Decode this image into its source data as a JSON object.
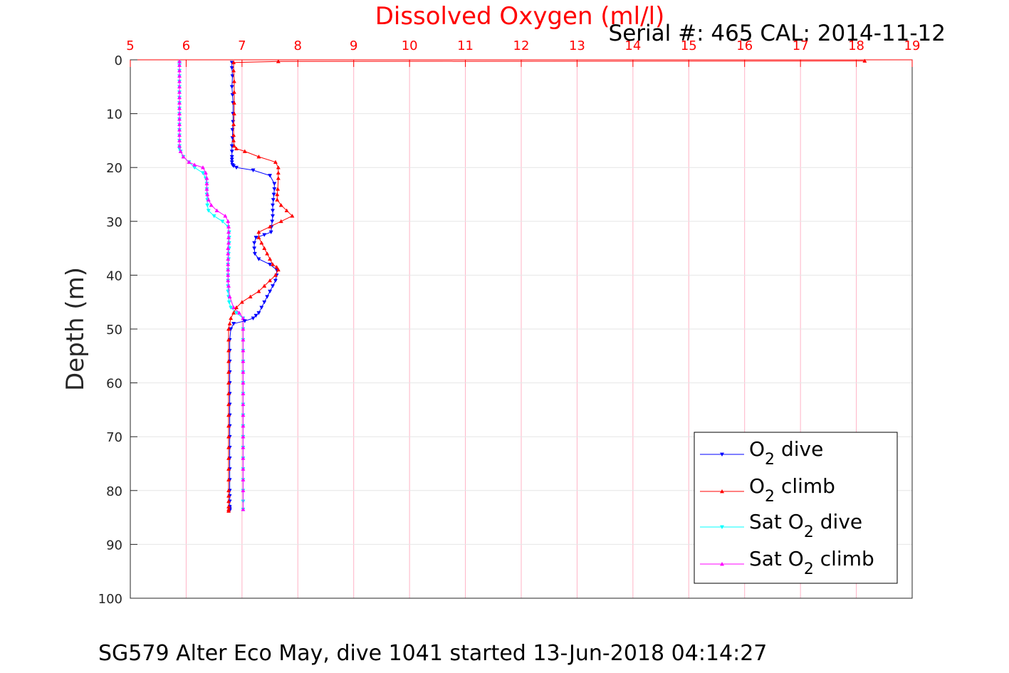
{
  "chart_data": {
    "type": "line",
    "title": "Dissolved Oxygen (ml/l)",
    "subtitle": "Serial #: 465  CAL: 2014-11-12",
    "caption": "SG579 Alter Eco May, dive 1041 started 13-Jun-2018 04:14:27",
    "xlabel": "",
    "ylabel": "Depth (m)",
    "xlim": [
      5,
      19
    ],
    "ylim": [
      0,
      100
    ],
    "y_reversed": true,
    "x_axis_position": "top",
    "grid": true,
    "x_ticks": [
      "5",
      "6",
      "7",
      "8",
      "9",
      "10",
      "11",
      "12",
      "13",
      "14",
      "15",
      "16",
      "17",
      "18",
      "19"
    ],
    "y_ticks": [
      "0",
      "10",
      "20",
      "30",
      "40",
      "50",
      "60",
      "70",
      "80",
      "90",
      "100"
    ],
    "legend": {
      "position": "lower-right",
      "entries": [
        {
          "pre": "O",
          "sub": "2",
          "post": " dive"
        },
        {
          "pre": "O",
          "sub": "2",
          "post": " climb"
        },
        {
          "pre": "Sat O",
          "sub": "2",
          "post": " dive"
        },
        {
          "pre": "Sat O",
          "sub": "2",
          "post": " climb"
        }
      ]
    },
    "series": [
      {
        "color": "#0000ff",
        "marker": "triangle-down",
        "x": [
          6.82,
          6.82,
          6.83,
          6.82,
          6.83,
          6.84,
          6.84,
          6.84,
          6.83,
          6.83,
          6.82,
          6.82,
          6.82,
          6.82,
          6.82,
          6.83,
          6.85,
          6.9,
          7.2,
          7.5,
          7.58,
          7.58,
          7.57,
          7.56,
          7.55,
          7.55,
          7.55,
          7.54,
          7.53,
          7.52,
          7.4,
          7.25,
          7.22,
          7.22,
          7.23,
          7.3,
          7.5,
          7.62,
          7.62,
          7.6,
          7.55,
          7.5,
          7.45,
          7.4,
          7.35,
          7.3,
          7.25,
          7.2,
          7.05,
          6.85,
          6.8,
          6.78,
          6.78,
          6.78,
          6.78,
          6.78,
          6.78,
          6.78,
          6.78,
          6.78,
          6.78,
          6.78,
          6.78,
          6.78,
          6.78,
          6.78,
          6.78,
          6.78,
          6.78,
          6.78,
          6.78,
          6.78
        ],
        "y": [
          0.5,
          1.5,
          3,
          5,
          6.5,
          8,
          10,
          11.5,
          13,
          14.5,
          16,
          17,
          18,
          18.5,
          19,
          19.5,
          19.7,
          20,
          20.5,
          21.5,
          23,
          24,
          25,
          26,
          27,
          28,
          29,
          30,
          31,
          32,
          32.5,
          33,
          34,
          35,
          36,
          37,
          38,
          39,
          40,
          41,
          42,
          43,
          44,
          45,
          46,
          47,
          47.5,
          48,
          48.5,
          49,
          50,
          52,
          54,
          56,
          58,
          60,
          62,
          64,
          66,
          68,
          70,
          72,
          74,
          76,
          78,
          80,
          81,
          82,
          83,
          83.3,
          83.5,
          83.7
        ]
      },
      {
        "color": "#ff0000",
        "marker": "triangle-up",
        "x": [
          18.15,
          7.65,
          6.85,
          6.85,
          6.86,
          6.86,
          6.86,
          6.86,
          6.85,
          6.85,
          6.85,
          6.86,
          6.9,
          7.05,
          7.3,
          7.6,
          7.65,
          7.65,
          7.65,
          7.64,
          7.63,
          7.63,
          7.7,
          7.8,
          7.9,
          7.7,
          7.5,
          7.3,
          7.3,
          7.35,
          7.4,
          7.45,
          7.5,
          7.55,
          7.62,
          7.65,
          7.6,
          7.5,
          7.4,
          7.3,
          7.15,
          7.0,
          6.9,
          6.85,
          6.8,
          6.78,
          6.76,
          6.76,
          6.76,
          6.76,
          6.76,
          6.76,
          6.76,
          6.76,
          6.76,
          6.76,
          6.76,
          6.76,
          6.76,
          6.76,
          6.76,
          6.76,
          6.76,
          6.76,
          6.76,
          6.76,
          6.76
        ],
        "y": [
          0.2,
          0.3,
          0.5,
          2,
          4,
          6,
          8,
          10,
          12,
          14,
          15,
          16,
          16.5,
          17,
          18,
          19,
          20,
          21,
          22,
          24,
          25,
          26,
          27,
          28,
          29,
          30,
          31,
          32,
          33,
          34,
          35,
          36,
          37,
          38,
          38.5,
          39,
          40,
          41,
          42,
          43,
          44,
          45,
          46,
          47,
          48,
          49,
          50,
          52,
          54,
          56,
          58,
          60,
          62,
          64,
          66,
          68,
          70,
          72,
          74,
          76,
          78,
          80,
          81,
          82,
          83,
          83.5,
          83.8
        ]
      },
      {
        "color": "#00ffff",
        "marker": "triangle-down",
        "x": [
          5.88,
          5.88,
          5.88,
          5.88,
          5.88,
          5.88,
          5.88,
          5.88,
          5.88,
          5.88,
          5.88,
          5.88,
          5.88,
          5.88,
          5.88,
          5.88,
          5.88,
          5.88,
          5.9,
          5.95,
          6.05,
          6.15,
          6.3,
          6.35,
          6.37,
          6.37,
          6.37,
          6.38,
          6.38,
          6.4,
          6.5,
          6.65,
          6.75,
          6.77,
          6.77,
          6.77,
          6.77,
          6.76,
          6.76,
          6.75,
          6.75,
          6.75,
          6.75,
          6.75,
          6.75,
          6.76,
          6.77,
          6.8,
          6.9,
          7.02,
          7.02,
          7.02,
          7.02,
          7.02,
          7.02,
          7.02,
          7.02,
          7.02,
          7.02,
          7.02,
          7.02,
          7.02,
          7.02,
          7.02,
          7.02,
          7.02,
          7.02,
          7.02
        ],
        "y": [
          0.5,
          1,
          2,
          3,
          4,
          5,
          6,
          7,
          8,
          9,
          10,
          11,
          12,
          13,
          14,
          15,
          16,
          16.5,
          17,
          18,
          19,
          20,
          21,
          22,
          23,
          24,
          25,
          26,
          27,
          28,
          29,
          30,
          31,
          32,
          33,
          34,
          35,
          36,
          37,
          38,
          39,
          40,
          41,
          42,
          43,
          44,
          45,
          46,
          47,
          48,
          50,
          52,
          54,
          56,
          58,
          60,
          62,
          64,
          66,
          68,
          70,
          72,
          74,
          76,
          78,
          80,
          82,
          83.5
        ]
      },
      {
        "color": "#ff00ff",
        "marker": "triangle-up",
        "x": [
          5.88,
          5.88,
          5.88,
          5.88,
          5.88,
          5.88,
          5.88,
          5.88,
          5.88,
          5.88,
          5.88,
          5.88,
          5.88,
          5.88,
          5.88,
          5.88,
          5.88,
          5.9,
          5.95,
          6.05,
          6.15,
          6.3,
          6.35,
          6.37,
          6.37,
          6.37,
          6.38,
          6.4,
          6.45,
          6.55,
          6.7,
          6.75,
          6.76,
          6.76,
          6.76,
          6.76,
          6.75,
          6.75,
          6.75,
          6.75,
          6.75,
          6.75,
          6.75,
          6.76,
          6.78,
          6.85,
          6.95,
          7.02,
          7.02,
          7.02,
          7.02,
          7.02,
          7.02,
          7.02,
          7.02,
          7.02,
          7.02,
          7.02,
          7.02,
          7.02,
          7.02,
          7.02,
          7.02,
          7.02,
          7.02
        ],
        "y": [
          0.3,
          1,
          2,
          3,
          4,
          5,
          6,
          7,
          8,
          9,
          10,
          11,
          12,
          13,
          14,
          15,
          16,
          17,
          18,
          19,
          19.5,
          20,
          21,
          22,
          23,
          24,
          25,
          26,
          27,
          28,
          29,
          30,
          31,
          32,
          33,
          34,
          35,
          36,
          37,
          38,
          39,
          40,
          41,
          42,
          44,
          46,
          47,
          48,
          50,
          52,
          54,
          56,
          58,
          60,
          62,
          64,
          66,
          68,
          70,
          72,
          74,
          76,
          78,
          80,
          83.5
        ]
      }
    ]
  }
}
